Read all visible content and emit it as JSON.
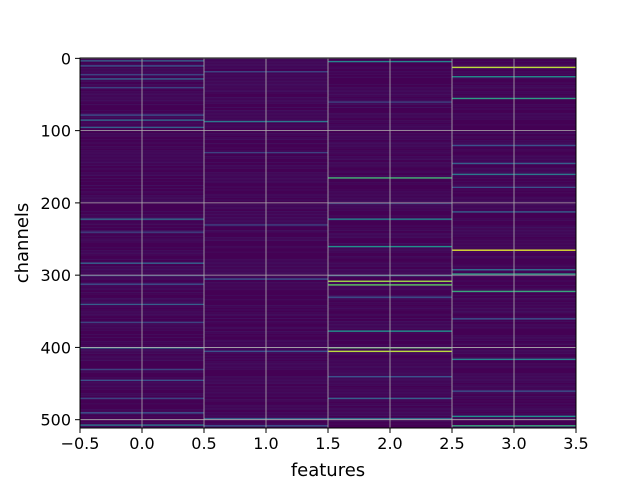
{
  "chart_data": {
    "type": "heatmap",
    "title": "",
    "xlabel": "features",
    "ylabel": "channels",
    "colormap": "viridis",
    "base_color": "#440154",
    "columns": [
      0,
      1,
      2,
      3
    ],
    "rows": 512,
    "xlim": [
      -0.5,
      3.5
    ],
    "ylim": [
      511.5,
      -0.5
    ],
    "y_inverted": true,
    "grid": true,
    "xticks": [
      -0.5,
      0.0,
      0.5,
      1.0,
      1.5,
      2.0,
      2.5,
      3.0,
      3.5
    ],
    "xtick_labels": [
      "−0.5",
      "0.0",
      "0.5",
      "1.0",
      "1.5",
      "2.0",
      "2.5",
      "3.0",
      "3.5"
    ],
    "yticks": [
      0,
      100,
      200,
      300,
      400,
      500
    ],
    "ytick_labels": [
      "0",
      "100",
      "200",
      "300",
      "400",
      "500"
    ],
    "highlights": [
      {
        "column": 0,
        "row": 3,
        "value": 0.3
      },
      {
        "column": 0,
        "row": 10,
        "value": 0.25
      },
      {
        "column": 0,
        "row": 22,
        "value": 0.2
      },
      {
        "column": 0,
        "row": 28,
        "value": 0.3
      },
      {
        "column": 0,
        "row": 40,
        "value": 0.2
      },
      {
        "column": 0,
        "row": 78,
        "value": 0.25
      },
      {
        "column": 0,
        "row": 85,
        "value": 0.35
      },
      {
        "column": 0,
        "row": 95,
        "value": 0.3
      },
      {
        "column": 0,
        "row": 222,
        "value": 0.35
      },
      {
        "column": 0,
        "row": 240,
        "value": 0.2
      },
      {
        "column": 0,
        "row": 283,
        "value": 0.3
      },
      {
        "column": 0,
        "row": 300,
        "value": 0.2
      },
      {
        "column": 0,
        "row": 312,
        "value": 0.25
      },
      {
        "column": 0,
        "row": 340,
        "value": 0.3
      },
      {
        "column": 0,
        "row": 365,
        "value": 0.2
      },
      {
        "column": 0,
        "row": 400,
        "value": 0.45
      },
      {
        "column": 0,
        "row": 430,
        "value": 0.2
      },
      {
        "column": 0,
        "row": 445,
        "value": 0.25
      },
      {
        "column": 0,
        "row": 470,
        "value": 0.2
      },
      {
        "column": 0,
        "row": 490,
        "value": 0.25
      },
      {
        "column": 0,
        "row": 507,
        "value": 0.4
      },
      {
        "column": 1,
        "row": 18,
        "value": 0.2
      },
      {
        "column": 1,
        "row": 87,
        "value": 0.4
      },
      {
        "column": 1,
        "row": 130,
        "value": 0.2
      },
      {
        "column": 1,
        "row": 230,
        "value": 0.2
      },
      {
        "column": 1,
        "row": 305,
        "value": 0.25
      },
      {
        "column": 1,
        "row": 405,
        "value": 0.25
      },
      {
        "column": 1,
        "row": 498,
        "value": 0.3
      },
      {
        "column": 1,
        "row": 508,
        "value": 0.25
      },
      {
        "column": 2,
        "row": 4,
        "value": 0.45
      },
      {
        "column": 2,
        "row": 60,
        "value": 0.2
      },
      {
        "column": 2,
        "row": 165,
        "value": 0.65
      },
      {
        "column": 2,
        "row": 200,
        "value": 0.2
      },
      {
        "column": 2,
        "row": 222,
        "value": 0.45
      },
      {
        "column": 2,
        "row": 260,
        "value": 0.5
      },
      {
        "column": 2,
        "row": 300,
        "value": 0.3
      },
      {
        "column": 2,
        "row": 308,
        "value": 0.85
      },
      {
        "column": 2,
        "row": 313,
        "value": 0.75
      },
      {
        "column": 2,
        "row": 330,
        "value": 0.25
      },
      {
        "column": 2,
        "row": 377,
        "value": 0.5
      },
      {
        "column": 2,
        "row": 400,
        "value": 0.7
      },
      {
        "column": 2,
        "row": 405,
        "value": 0.9
      },
      {
        "column": 2,
        "row": 440,
        "value": 0.25
      },
      {
        "column": 2,
        "row": 470,
        "value": 0.3
      },
      {
        "column": 2,
        "row": 498,
        "value": 0.35
      },
      {
        "column": 3,
        "row": 12,
        "value": 0.9
      },
      {
        "column": 3,
        "row": 25,
        "value": 0.5
      },
      {
        "column": 3,
        "row": 55,
        "value": 0.55
      },
      {
        "column": 3,
        "row": 120,
        "value": 0.25
      },
      {
        "column": 3,
        "row": 145,
        "value": 0.3
      },
      {
        "column": 3,
        "row": 160,
        "value": 0.4
      },
      {
        "column": 3,
        "row": 178,
        "value": 0.25
      },
      {
        "column": 3,
        "row": 212,
        "value": 0.3
      },
      {
        "column": 3,
        "row": 265,
        "value": 0.95
      },
      {
        "column": 3,
        "row": 292,
        "value": 0.35
      },
      {
        "column": 3,
        "row": 298,
        "value": 0.55
      },
      {
        "column": 3,
        "row": 322,
        "value": 0.6
      },
      {
        "column": 3,
        "row": 360,
        "value": 0.25
      },
      {
        "column": 3,
        "row": 416,
        "value": 0.45
      },
      {
        "column": 3,
        "row": 460,
        "value": 0.25
      },
      {
        "column": 3,
        "row": 495,
        "value": 0.5
      },
      {
        "column": 3,
        "row": 508,
        "value": 0.6
      }
    ]
  }
}
